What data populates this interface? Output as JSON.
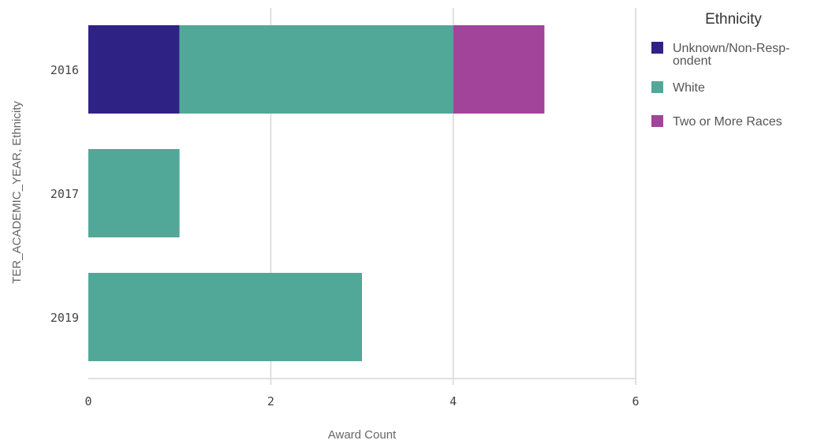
{
  "chart_data": {
    "type": "bar",
    "orientation": "horizontal",
    "stacked": true,
    "categories": [
      "2016",
      "2017",
      "2019"
    ],
    "series": [
      {
        "name": "Unknown/Non-Respondent",
        "legend_lines": [
          "Unknown/Non-Resp-",
          "ondent"
        ],
        "color": "#2e2385",
        "values": [
          1,
          0,
          0
        ]
      },
      {
        "name": "White",
        "legend_lines": [
          "White"
        ],
        "color": "#52a898",
        "values": [
          3,
          1,
          3
        ]
      },
      {
        "name": "Two or More Races",
        "legend_lines": [
          "Two or More Races"
        ],
        "color": "#a2449a",
        "values": [
          1,
          0,
          0
        ]
      }
    ],
    "xlabel": "Award Count",
    "ylabel": "TER_ACADEMIC_YEAR, Ethnicity",
    "xlim": [
      0,
      6
    ],
    "xticks": [
      0,
      2,
      4,
      6
    ],
    "grid": true,
    "legend_title": "Ethnicity",
    "legend_position": "right"
  }
}
